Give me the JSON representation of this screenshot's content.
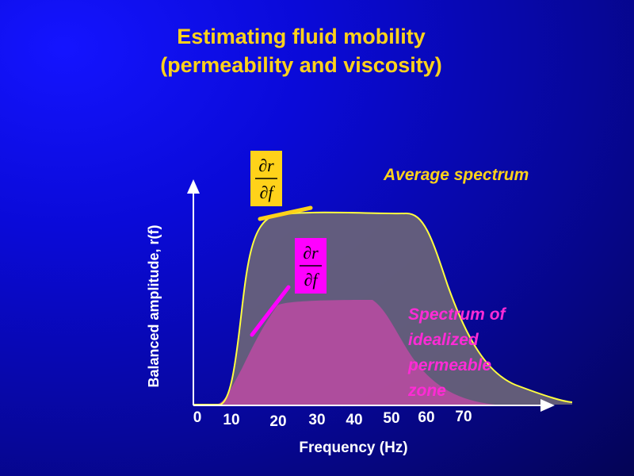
{
  "title": {
    "line1": "Estimating fluid mobility",
    "line2": "(permeability and viscosity)"
  },
  "axes": {
    "xlabel": "Frequency (Hz)",
    "ylabel": "Balanced  amplitude, r(f)",
    "xticks": [
      "0",
      "10",
      "20",
      "30",
      "40",
      "50",
      "60",
      "70"
    ]
  },
  "labels": {
    "average": "Average spectrum",
    "permeable": [
      "Spectrum of",
      "idealized",
      "permeable",
      "zone"
    ]
  },
  "derivative": {
    "numerator": "∂r",
    "denominator": "∂f"
  },
  "colors": {
    "title": "#ffd21a",
    "average_curve": "#ffff40",
    "permeable_curve": "#ff00ff",
    "permeable_label": "#ff2bd6",
    "axis": "#ffffff",
    "tick_labels": "#ffffff",
    "derivative_box": "#ffd21a"
  }
}
